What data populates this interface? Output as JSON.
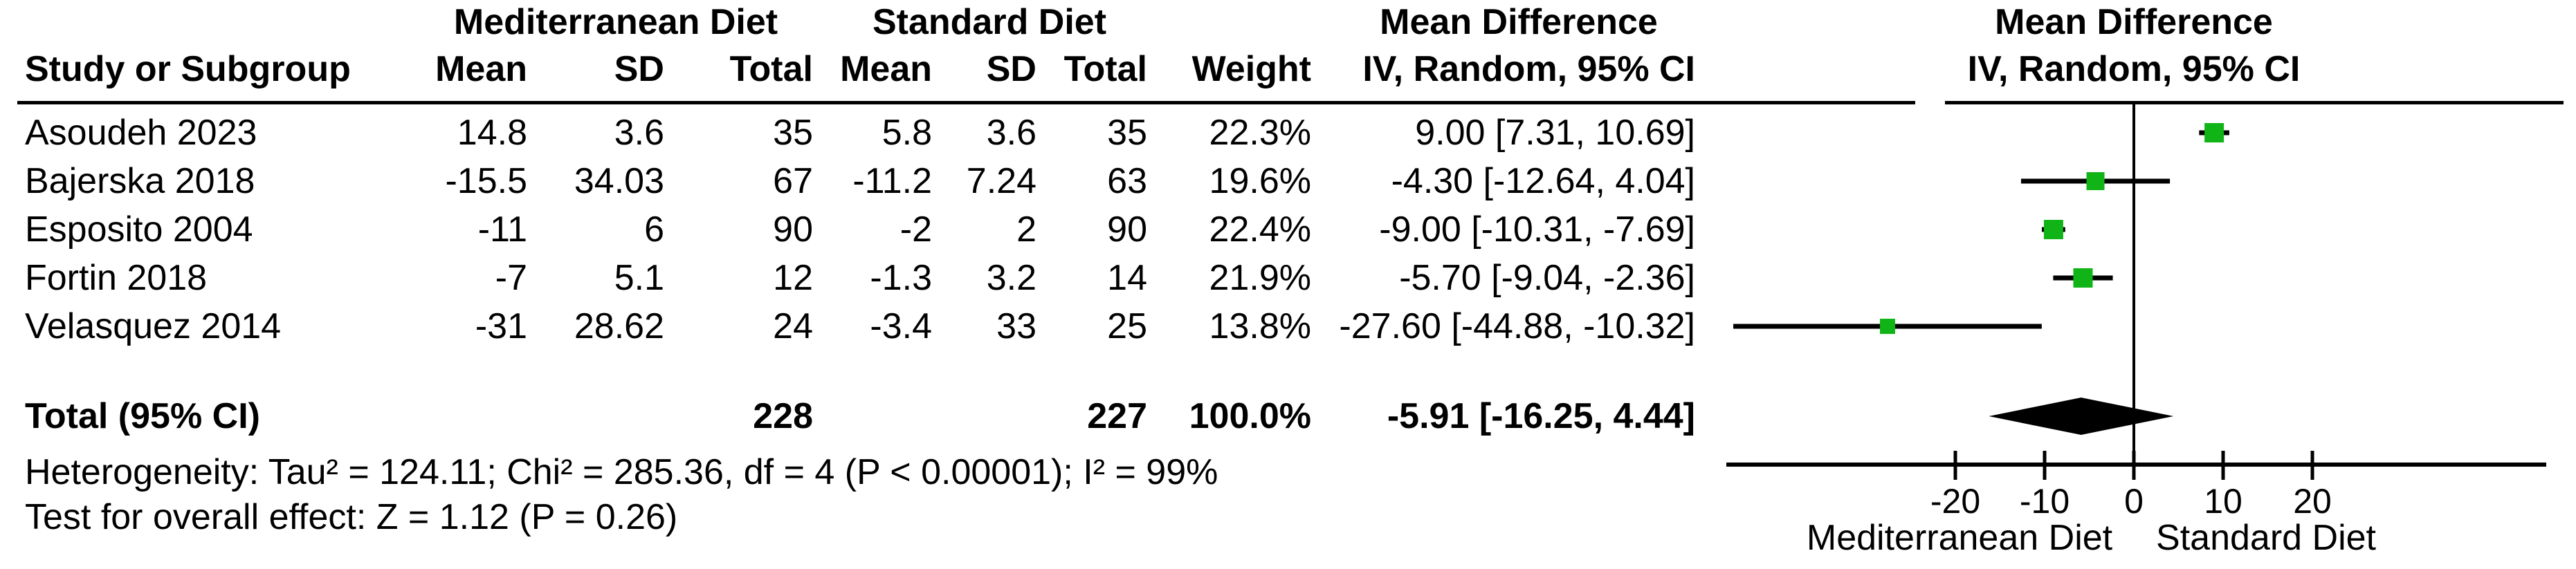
{
  "colors": {
    "marker_green": "#10b416",
    "line_black": "#000000",
    "background": "#ffffff"
  },
  "header": {
    "group_med": "Mediterranean Diet",
    "group_std": "Standard Diet",
    "group_md_text": "Mean Difference",
    "group_md_plot": "Mean Difference",
    "col_study": "Study or Subgroup",
    "col_mean1": "Mean",
    "col_sd1": "SD",
    "col_total1": "Total",
    "col_mean2": "Mean",
    "col_sd2": "SD",
    "col_total2": "Total",
    "col_weight": "Weight",
    "col_ci_text": "IV, Random, 95% CI",
    "col_ci_plot": "IV, Random, 95% CI"
  },
  "rows": [
    {
      "study": "Asoudeh 2023",
      "mean1": "14.8",
      "sd1": "3.6",
      "total1": "35",
      "mean2": "5.8",
      "sd2": "3.6",
      "total2": "35",
      "weight": "22.3%",
      "ci": "9.00 [7.31, 10.69]"
    },
    {
      "study": "Bajerska 2018",
      "mean1": "-15.5",
      "sd1": "34.03",
      "total1": "67",
      "mean2": "-11.2",
      "sd2": "7.24",
      "total2": "63",
      "weight": "19.6%",
      "ci": "-4.30 [-12.64, 4.04]"
    },
    {
      "study": "Esposito 2004",
      "mean1": "-11",
      "sd1": "6",
      "total1": "90",
      "mean2": "-2",
      "sd2": "2",
      "total2": "90",
      "weight": "22.4%",
      "ci": "-9.00 [-10.31, -7.69]"
    },
    {
      "study": "Fortin 2018",
      "mean1": "-7",
      "sd1": "5.1",
      "total1": "12",
      "mean2": "-1.3",
      "sd2": "3.2",
      "total2": "14",
      "weight": "21.9%",
      "ci": "-5.70 [-9.04, -2.36]"
    },
    {
      "study": "Velasquez 2014",
      "mean1": "-31",
      "sd1": "28.62",
      "total1": "24",
      "mean2": "-3.4",
      "sd2": "33",
      "total2": "25",
      "weight": "13.8%",
      "ci": "-27.60 [-44.88, -10.32]"
    }
  ],
  "total_row": {
    "label": "Total (95% CI)",
    "total1": "228",
    "total2": "227",
    "weight": "100.0%",
    "ci": "-5.91 [-16.25, 4.44]"
  },
  "footer": {
    "heterogeneity": "Heterogeneity: Tau² = 124.11; Chi² = 285.36, df = 4 (P < 0.00001); I² = 99%",
    "overall_effect": "Test for overall effect: Z = 1.12 (P = 0.26)"
  },
  "chart_data": {
    "type": "forest",
    "effect_measure": "Mean Difference — IV, Random, 95% CI",
    "x_ticks": [
      -20,
      -10,
      0,
      10,
      20
    ],
    "x_range": [
      -45.7,
      46.2
    ],
    "studies": [
      {
        "label": "Asoudeh 2023",
        "md": 9.0,
        "ci_low": 7.31,
        "ci_high": 10.69,
        "weight_pct": 22.3
      },
      {
        "label": "Bajerska 2018",
        "md": -4.3,
        "ci_low": -12.64,
        "ci_high": 4.04,
        "weight_pct": 19.6
      },
      {
        "label": "Esposito 2004",
        "md": -9.0,
        "ci_low": -10.31,
        "ci_high": -7.69,
        "weight_pct": 22.4
      },
      {
        "label": "Fortin 2018",
        "md": -5.7,
        "ci_low": -9.04,
        "ci_high": -2.36,
        "weight_pct": 21.9
      },
      {
        "label": "Velasquez 2014",
        "md": -27.6,
        "ci_low": -44.88,
        "ci_high": -10.32,
        "weight_pct": 13.8
      }
    ],
    "total": {
      "md": -5.91,
      "ci_low": -16.25,
      "ci_high": 4.44
    },
    "axis_label_left": "Mediterranean Diet",
    "axis_label_right": "Standard Diet",
    "grid": false,
    "zero_line": 0
  }
}
